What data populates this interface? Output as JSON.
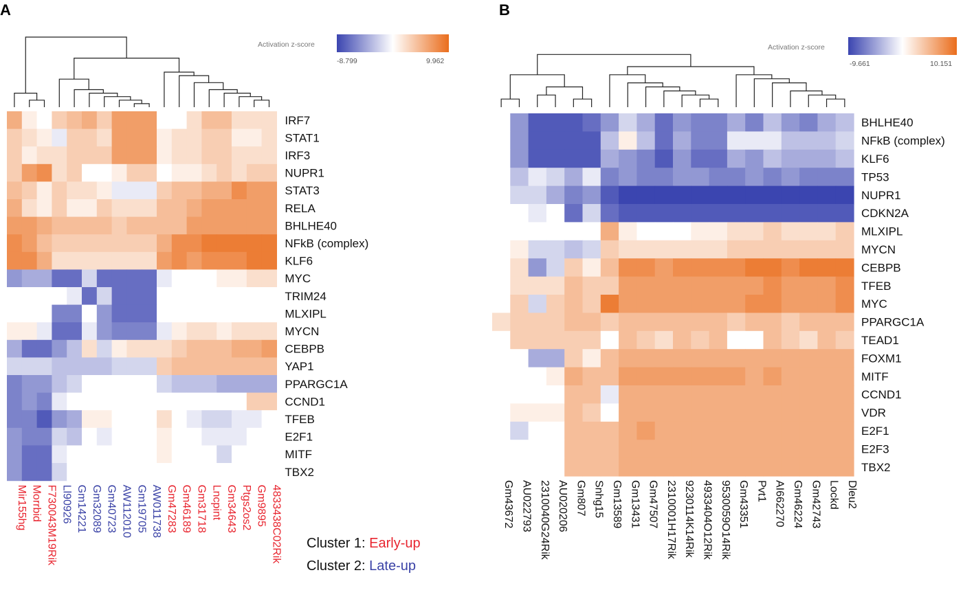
{
  "colors": {
    "low": "#3b45b0",
    "mid": "#ffffff",
    "high": "#ea6d1c",
    "early_up": "#e8252f",
    "late_up": "#3a42a6",
    "text": "#111111"
  },
  "chart_data": [
    {
      "type": "heatmap",
      "panel": "A",
      "legend": {
        "title": "Activation z-score",
        "min_label": "-8.799",
        "max_label": "9.962",
        "min": -8.799,
        "max": 9.962
      },
      "rows": [
        "IRF7",
        "STAT1",
        "IRF3",
        "NUPR1",
        "STAT3",
        "RELA",
        "BHLHE40",
        "NFkB (complex)",
        "KLF6",
        "MYC",
        "TRIM24",
        "MLXIPL",
        "MYCN",
        "CEBPB",
        "YAP1",
        "PPARGC1A",
        "CCND1",
        "TFEB",
        "E2F1",
        "MITF",
        "TBX2"
      ],
      "columns": [
        "Mir155hg",
        "Morrbid",
        "F730043M19Rik",
        "Ll90926",
        "Gm14221",
        "Gm32089",
        "Gm40723",
        "AW112010",
        "Gm19705",
        "AW011738",
        "Gm47283",
        "Gm46189",
        "Gm31718",
        "Lncpint",
        "Gm34643",
        "Ptgs2os2",
        "Gm9895",
        "4833438C02Rik"
      ],
      "column_cluster": [
        1,
        1,
        1,
        2,
        2,
        2,
        2,
        2,
        2,
        2,
        1,
        1,
        1,
        1,
        1,
        1,
        1,
        1
      ],
      "cluster_labels": [
        {
          "prefix": "Cluster 1: ",
          "name": "Early-up"
        },
        {
          "prefix": "Cluster 2: ",
          "name": "Late-up"
        }
      ],
      "values": [
        [
          5,
          1,
          0,
          3,
          4,
          5,
          3,
          6,
          6,
          6,
          0,
          0,
          2,
          4,
          4,
          2,
          2,
          2
        ],
        [
          3,
          2,
          1,
          -1,
          3,
          3,
          2,
          6,
          6,
          6,
          1,
          2,
          2,
          3,
          3,
          1,
          1,
          2
        ],
        [
          3,
          1,
          2,
          2,
          3,
          3,
          3,
          6,
          6,
          6,
          1,
          2,
          2,
          3,
          3,
          2,
          2,
          2
        ],
        [
          3,
          6,
          7,
          2,
          3,
          0,
          0,
          1,
          3,
          3,
          0,
          1,
          1,
          2,
          3,
          2,
          3,
          3
        ],
        [
          4,
          3,
          1,
          3,
          2,
          2,
          1,
          -1,
          -1,
          -1,
          3,
          4,
          4,
          5,
          5,
          7,
          6,
          6
        ],
        [
          5,
          2,
          1,
          3,
          1,
          1,
          3,
          2,
          2,
          2,
          4,
          4,
          5,
          6,
          6,
          6,
          6,
          6
        ],
        [
          6,
          6,
          5,
          4,
          4,
          4,
          4,
          3,
          4,
          4,
          4,
          4,
          6,
          6,
          6,
          6,
          6,
          6
        ],
        [
          7,
          6,
          4,
          3,
          3,
          3,
          3,
          3,
          3,
          3,
          5,
          7,
          7,
          8,
          8,
          8,
          8,
          8
        ],
        [
          7,
          7,
          5,
          2,
          2,
          2,
          2,
          2,
          2,
          2,
          6,
          7,
          6,
          7,
          7,
          7,
          8,
          8
        ],
        [
          -5,
          -4,
          -4,
          -7,
          -7,
          -2,
          -7,
          -7,
          -7,
          -7,
          -1,
          0,
          0,
          0,
          1,
          1,
          2,
          2
        ],
        [
          0,
          0,
          0,
          0,
          -1,
          -7,
          -2,
          -7,
          -7,
          -7,
          0,
          0,
          0,
          0,
          0,
          0,
          0,
          0
        ],
        [
          0,
          0,
          0,
          -6,
          -6,
          0,
          -5,
          -7,
          -7,
          -7,
          0,
          0,
          0,
          0,
          0,
          0,
          0,
          0
        ],
        [
          1,
          1,
          -1,
          -7,
          -7,
          -1,
          -5,
          -6,
          -6,
          -6,
          -1,
          1,
          2,
          2,
          1,
          2,
          2,
          2
        ],
        [
          -4,
          -7,
          -7,
          -5,
          -3,
          2,
          -2,
          1,
          2,
          2,
          2,
          3,
          4,
          4,
          4,
          5,
          5,
          6
        ],
        [
          -2,
          -2,
          -2,
          -3,
          -3,
          -3,
          -3,
          -2,
          -2,
          -2,
          3,
          4,
          4,
          4,
          4,
          4,
          4,
          4
        ],
        [
          -6,
          -5,
          -5,
          -3,
          -2,
          0,
          0,
          0,
          0,
          0,
          -2,
          -3,
          -3,
          -3,
          -4,
          -4,
          -4,
          -4
        ],
        [
          -6,
          -5,
          -6,
          -1,
          0,
          0,
          0,
          0,
          0,
          0,
          0,
          0,
          0,
          0,
          0,
          0,
          3,
          3
        ],
        [
          -6,
          -6,
          -8,
          -5,
          -4,
          1,
          1,
          0,
          0,
          0,
          2,
          0,
          -1,
          -2,
          -2,
          -1,
          -1,
          0
        ],
        [
          -5,
          -6,
          -6,
          -2,
          -3,
          0,
          -1,
          0,
          0,
          0,
          1,
          0,
          0,
          -1,
          -1,
          -1,
          0,
          0
        ],
        [
          -5,
          -7,
          -7,
          -1,
          0,
          0,
          0,
          0,
          0,
          0,
          1,
          0,
          0,
          0,
          -2,
          0,
          0,
          0
        ],
        [
          -5,
          -7,
          -7,
          -2,
          0,
          0,
          0,
          0,
          0,
          0,
          0,
          0,
          0,
          0,
          0,
          0,
          0,
          0
        ]
      ]
    },
    {
      "type": "heatmap",
      "panel": "B",
      "legend": {
        "title": "Activation z-score",
        "min_label": "-9.661",
        "max_label": "10.151",
        "min": -9.661,
        "max": 10.151
      },
      "rows": [
        "BHLHE40",
        "NFkB (complex)",
        "KLF6",
        "TP53",
        "NUPR1",
        "CDKN2A",
        "MLXIPL",
        "MYCN",
        "CEBPB",
        "TFEB",
        "MYC",
        "PPARGC1A",
        "TEAD1",
        "FOXM1",
        "MITF",
        "CCND1",
        "VDR",
        "E2F1",
        "E2F3",
        "TBX2"
      ],
      "columns": [
        "Gm43672",
        "AU022793",
        "2310040G24Rik",
        "AU020206",
        "Gm807",
        "Snhg15",
        "Gm13589",
        "Gm13431",
        "Gm47507",
        "2310001H17Rik",
        "9230114K14Rik",
        "4933404O12Rik",
        "9530059O14Rik",
        "Gm43351",
        "Pvt1",
        "AI662270",
        "Gm46224",
        "Gm42743",
        "Lockd",
        "Dleu2"
      ],
      "values": [
        [
          null,
          -5,
          -8,
          -8,
          -8,
          -7,
          -5,
          -2,
          -4,
          -7,
          -5,
          -6,
          -6,
          -4,
          -6,
          -3,
          -5,
          -6,
          -4,
          -3
        ],
        [
          null,
          -5,
          -8,
          -8,
          -8,
          -8,
          -3,
          1,
          -3,
          -7,
          -4,
          -6,
          -6,
          -1,
          -1,
          -1,
          -3,
          -3,
          -3,
          -2
        ],
        [
          null,
          -5,
          -8,
          -8,
          -8,
          -8,
          -4,
          -5,
          -6,
          -8,
          -5,
          -7,
          -7,
          -4,
          -5,
          -3,
          -4,
          -4,
          -4,
          -3
        ],
        [
          null,
          -3,
          -1,
          -2,
          -4,
          -1,
          -6,
          -5,
          -6,
          -6,
          -5,
          -5,
          -6,
          -6,
          -5,
          -6,
          -5,
          -6,
          -6,
          -6
        ],
        [
          null,
          -2,
          -2,
          -4,
          -6,
          -5,
          -8,
          -9,
          -9,
          -9,
          -9,
          -9,
          -9,
          -9,
          -9,
          -9,
          -9,
          -9,
          -9,
          -9
        ],
        [
          null,
          null,
          -1,
          0,
          -7,
          -2,
          -7,
          -8,
          -8,
          -8,
          -8,
          -8,
          -8,
          -8,
          -8,
          -8,
          -8,
          -8,
          -8,
          -8
        ],
        [
          null,
          0,
          0,
          0,
          0,
          0,
          5,
          1,
          0,
          0,
          0,
          1,
          1,
          2,
          2,
          3,
          2,
          2,
          2,
          3
        ],
        [
          null,
          1,
          -2,
          -2,
          -3,
          -2,
          3,
          2,
          2,
          2,
          2,
          2,
          2,
          3,
          3,
          3,
          3,
          3,
          3,
          3
        ],
        [
          null,
          2,
          -5,
          -2,
          3,
          1,
          4,
          7,
          7,
          6,
          7,
          7,
          7,
          7,
          8,
          8,
          7,
          8,
          8,
          8
        ],
        [
          null,
          2,
          2,
          2,
          4,
          3,
          3,
          6,
          6,
          6,
          6,
          6,
          6,
          6,
          6,
          7,
          6,
          6,
          6,
          7
        ],
        [
          null,
          3,
          -2,
          3,
          4,
          3,
          8,
          6,
          6,
          6,
          6,
          6,
          6,
          6,
          7,
          7,
          6,
          6,
          6,
          7
        ],
        [
          2,
          3,
          3,
          3,
          4,
          4,
          3,
          4,
          4,
          4,
          4,
          4,
          4,
          3,
          4,
          4,
          3,
          4,
          4,
          4
        ],
        [
          null,
          3,
          3,
          3,
          3,
          3,
          0,
          4,
          3,
          2,
          4,
          3,
          4,
          0,
          0,
          4,
          3,
          2,
          4,
          3
        ],
        [
          null,
          null,
          -4,
          -4,
          3,
          1,
          4,
          5,
          5,
          5,
          5,
          5,
          5,
          5,
          5,
          5,
          5,
          5,
          5,
          5
        ],
        [
          null,
          null,
          null,
          1,
          5,
          4,
          4,
          6,
          6,
          6,
          6,
          6,
          6,
          6,
          5,
          6,
          5,
          5,
          5,
          5
        ],
        [
          null,
          null,
          null,
          null,
          4,
          4,
          -1,
          5,
          5,
          5,
          5,
          5,
          5,
          5,
          5,
          5,
          5,
          5,
          5,
          5
        ],
        [
          null,
          1,
          1,
          1,
          4,
          3,
          0,
          5,
          5,
          5,
          5,
          5,
          5,
          5,
          5,
          5,
          5,
          5,
          5,
          5
        ],
        [
          null,
          -2,
          null,
          0,
          4,
          4,
          4,
          5,
          6,
          5,
          5,
          5,
          5,
          5,
          5,
          5,
          5,
          5,
          5,
          5
        ],
        [
          null,
          null,
          null,
          null,
          4,
          4,
          4,
          5,
          5,
          5,
          5,
          5,
          5,
          5,
          5,
          5,
          5,
          5,
          5,
          5
        ],
        [
          null,
          null,
          null,
          null,
          4,
          4,
          4,
          5,
          5,
          5,
          5,
          5,
          5,
          5,
          5,
          5,
          5,
          5,
          5,
          5
        ]
      ]
    }
  ]
}
